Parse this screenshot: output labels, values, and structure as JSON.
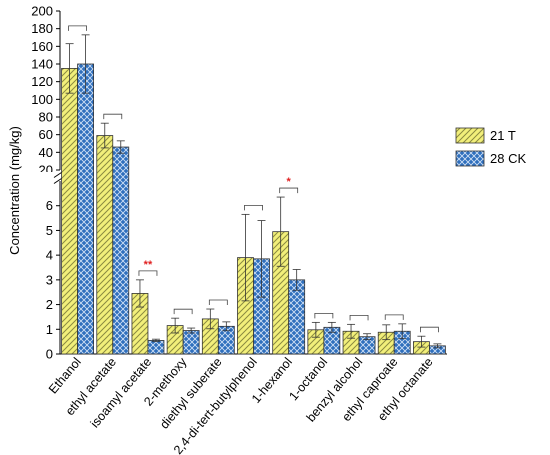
{
  "chart_data": {
    "type": "bar",
    "ylabel": "Concentration (mg/kg)",
    "y_axis_break": true,
    "ylim_lower": [
      0,
      7
    ],
    "ylim_upper": [
      20,
      200
    ],
    "yticks_lower": [
      "0",
      "1",
      "2",
      "3",
      "4",
      "5",
      "6"
    ],
    "yticks_upper": [
      "20",
      "40",
      "60",
      "80",
      "100",
      "120",
      "140",
      "160",
      "180",
      "200"
    ],
    "categories": [
      "Ethanol",
      "ethyl acetate",
      "isoamyl acetate",
      "2-methoxy",
      "diethyl suberate",
      "2,4-di-tert-butylphenol",
      "1-hexanol",
      "1-octanol",
      "benzyl alcohol",
      "ethyl caproate",
      "ethyl octanate"
    ],
    "series": [
      {
        "name": "21 T",
        "color": "#f2ef7a",
        "pattern": "diagonal-hatch",
        "values": [
          135,
          59,
          2.45,
          1.15,
          1.42,
          3.9,
          4.95,
          0.98,
          0.92,
          0.88,
          0.5
        ],
        "errors": [
          28,
          14,
          0.55,
          0.3,
          0.4,
          1.75,
          1.4,
          0.3,
          0.28,
          0.3,
          0.22
        ]
      },
      {
        "name": "28 CK",
        "color": "#2f6fbd",
        "pattern": "crosshatch",
        "values": [
          140,
          46,
          0.55,
          0.95,
          1.12,
          3.85,
          3.0,
          1.08,
          0.7,
          0.92,
          0.33
        ],
        "errors": [
          33,
          7,
          0.05,
          0.1,
          0.18,
          1.55,
          0.42,
          0.2,
          0.12,
          0.3,
          0.08
        ]
      }
    ],
    "significance": [
      "",
      "",
      "**",
      "",
      "",
      "",
      "*",
      "",
      "",
      "",
      ""
    ],
    "legend_position": "right",
    "grid": false
  }
}
